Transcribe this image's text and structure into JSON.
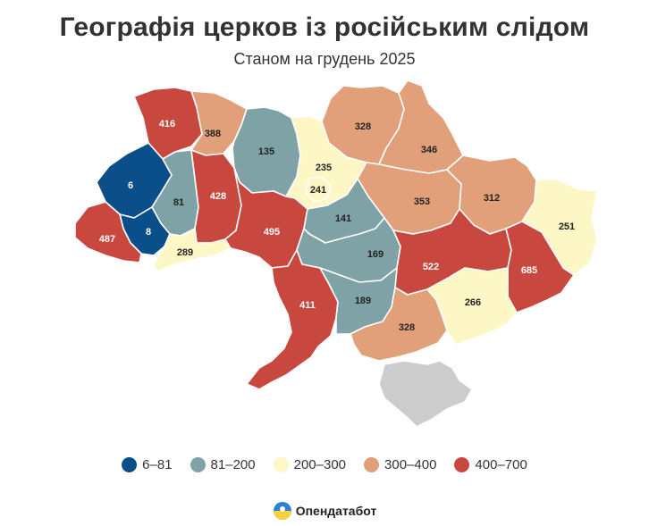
{
  "header": {
    "title": "Географія церков із російським слідом",
    "subtitle": "Станом на грудень 2025"
  },
  "legend": [
    {
      "label": "6–81",
      "color": "#0b4f8a"
    },
    {
      "label": "81–200",
      "color": "#7fa2a6"
    },
    {
      "label": "200–300",
      "color": "#fcf7c4"
    },
    {
      "label": "300–400",
      "color": "#e1a07a"
    },
    {
      "label": "400–700",
      "color": "#c8473e"
    }
  ],
  "colors": {
    "crimea": "#cccccc",
    "label_dark": "#222222",
    "label_light": "#ffffff"
  },
  "regions": [
    {
      "id": "volyn",
      "value": "416",
      "class": "400–700"
    },
    {
      "id": "rivne",
      "value": "388",
      "class": "300–400"
    },
    {
      "id": "zhytomyr",
      "value": "135",
      "class": "81–200"
    },
    {
      "id": "kyiv-oblast",
      "value": "235",
      "class": "200–300"
    },
    {
      "id": "kyiv-city",
      "value": "241",
      "class": "200–300"
    },
    {
      "id": "chernihiv",
      "value": "328",
      "class": "300–400"
    },
    {
      "id": "sumy",
      "value": "346",
      "class": "300–400"
    },
    {
      "id": "poltava",
      "value": "353",
      "class": "300–400"
    },
    {
      "id": "kharkiv",
      "value": "312",
      "class": "300–400"
    },
    {
      "id": "luhansk",
      "value": "251",
      "class": "200–300"
    },
    {
      "id": "lviv",
      "value": "6",
      "class": "6–81"
    },
    {
      "id": "ternopil",
      "value": "81",
      "class": "81–200"
    },
    {
      "id": "khmelnytskyi",
      "value": "428",
      "class": "400–700"
    },
    {
      "id": "ivano-frankivsk",
      "value": "8",
      "class": "6–81"
    },
    {
      "id": "zakarpattia",
      "value": "487",
      "class": "400–700"
    },
    {
      "id": "chernivtsi",
      "value": "289",
      "class": "200–300"
    },
    {
      "id": "vinnytsia",
      "value": "495",
      "class": "400–700"
    },
    {
      "id": "cherkasy",
      "value": "141",
      "class": "81–200"
    },
    {
      "id": "kirovohrad",
      "value": "169",
      "class": "81–200"
    },
    {
      "id": "dnipropetrovsk",
      "value": "522",
      "class": "400–700"
    },
    {
      "id": "donetsk",
      "value": "685",
      "class": "400–700"
    },
    {
      "id": "odesa",
      "value": "411",
      "class": "400–700"
    },
    {
      "id": "mykolaiv",
      "value": "189",
      "class": "81–200"
    },
    {
      "id": "zaporizhzhia",
      "value": "266",
      "class": "200–300"
    },
    {
      "id": "kherson",
      "value": "328",
      "class": "300–400"
    },
    {
      "id": "crimea",
      "value": "",
      "class": ""
    }
  ],
  "brand": {
    "name": "Опендатабот"
  }
}
